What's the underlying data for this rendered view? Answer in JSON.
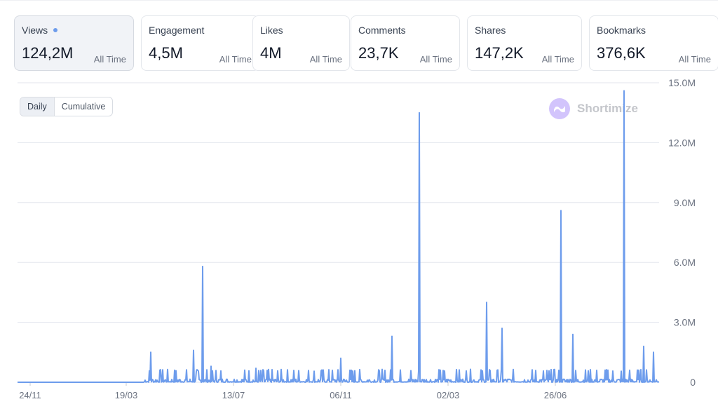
{
  "metrics": [
    {
      "label": "Views",
      "value": "124,2M",
      "period": "All Time",
      "active": true
    },
    {
      "label": "Engagement",
      "value": "4,5M",
      "period": "All Time",
      "active": false
    },
    {
      "label": "Likes",
      "value": "4M",
      "period": "All Time",
      "active": false
    },
    {
      "label": "Comments",
      "value": "23,7K",
      "period": "All Time",
      "active": false
    },
    {
      "label": "Shares",
      "value": "147,2K",
      "period": "All Time",
      "active": false
    },
    {
      "label": "Bookmarks",
      "value": "376,6K",
      "period": "All Time",
      "active": false
    }
  ],
  "toggle": {
    "daily": "Daily",
    "cumulative": "Cumulative",
    "selected": "Daily"
  },
  "watermark": {
    "text": "Shortimize",
    "icon": "shortimize-logo-icon"
  },
  "colors": {
    "line": "#6d9cec",
    "grid": "#e3e6ee",
    "axis_text": "#6b7280"
  },
  "chart_data": {
    "type": "line",
    "series": [
      {
        "values_desc": "daily views"
      }
    ],
    "x_tick_labels": [
      "24/11",
      "19/03",
      "13/07",
      "06/11",
      "02/03",
      "26/06"
    ],
    "y_tick_labels": [
      "15.0M",
      "12.0M",
      "9.0M",
      "6.0M",
      "3.0M",
      "0"
    ],
    "ylim": [
      0,
      15000000
    ],
    "grid": true,
    "peaks": [
      {
        "x": "24/11",
        "y": 0
      },
      {
        "x": "10/04",
        "y": 1500000
      },
      {
        "x": "18/05",
        "y": 1600000
      },
      {
        "x": "01/06",
        "y": 5800000
      },
      {
        "x": "10/06",
        "y": 800000
      },
      {
        "x": "05/08",
        "y": 700000
      },
      {
        "x": "06/11",
        "y": 1200000
      },
      {
        "x": "20/12",
        "y": 2300000
      },
      {
        "x": "14/01",
        "y": 13500000
      },
      {
        "x": "08/04",
        "y": 4000000
      },
      {
        "x": "15/04",
        "y": 2700000
      },
      {
        "x": "28/06",
        "y": 8600000
      },
      {
        "x": "15/07",
        "y": 2400000
      },
      {
        "x": "23/08",
        "y": 14600000
      },
      {
        "x": "10/09",
        "y": 1800000
      },
      {
        "x": "18/09",
        "y": 1500000
      }
    ]
  }
}
